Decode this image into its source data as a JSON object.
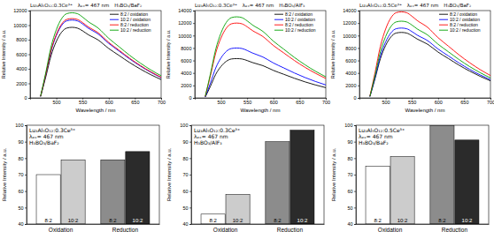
{
  "chart_data": [
    {
      "type": "line",
      "title": "Lu₃Al₅O₁₂:0.3Ce³⁺",
      "annotations": [
        "λₑₓ= 467 nm",
        "H₃BO₃/BaF₂"
      ],
      "xlabel": "Wavelength / nm",
      "ylabel": "Relative Intensity / a.u.",
      "x": [
        470,
        480,
        490,
        500,
        510,
        520,
        530,
        540,
        550,
        560,
        580,
        600,
        620,
        640,
        660,
        680,
        700
      ],
      "xlim": [
        450,
        700
      ],
      "xticks": [
        500,
        550,
        600,
        650,
        700
      ],
      "ylim": [
        0,
        12000
      ],
      "yticks": [
        0,
        2000,
        4000,
        6000,
        8000,
        10000,
        12000
      ],
      "legend": "upper right",
      "series": [
        {
          "name": "8:2 / oxidation",
          "color": "#000000",
          "values": [
            190,
            2910,
            5820,
            7760,
            9020,
            9600,
            9700,
            9600,
            9220,
            8730,
            7950,
            6790,
            5820,
            4850,
            3980,
            3200,
            2520
          ]
        },
        {
          "name": "10:2 / oxidation",
          "color": "#0000ff",
          "values": [
            210,
            3210,
            6420,
            8560,
            9950,
            10590,
            10700,
            10590,
            10170,
            9630,
            8770,
            7490,
            6420,
            5350,
            4390,
            3530,
            2780
          ]
        },
        {
          "name": "8:2 / reduction",
          "color": "#ff0000",
          "values": [
            220,
            3270,
            6540,
            8720,
            10140,
            10790,
            10900,
            10790,
            10360,
            9810,
            8940,
            7630,
            6540,
            5450,
            4470,
            3600,
            2830
          ]
        },
        {
          "name": "10:2 / reduction",
          "color": "#00a000",
          "values": [
            230,
            3510,
            7020,
            9360,
            10880,
            11580,
            11700,
            11580,
            11120,
            10530,
            9590,
            8190,
            7020,
            5850,
            4800,
            3860,
            3040
          ]
        }
      ]
    },
    {
      "type": "line",
      "title": "Lu₃Al₅O₁₂:0.3Ce³⁺",
      "annotations": [
        "λₑₓ= 467 nm",
        "H₃BO₃/AlF₃"
      ],
      "xlabel": "Wavelength / nm",
      "ylabel": "Relative Intensity / a.u.",
      "x": [
        470,
        480,
        490,
        500,
        510,
        520,
        530,
        540,
        550,
        560,
        580,
        600,
        620,
        640,
        660,
        680,
        700
      ],
      "xlim": [
        450,
        700
      ],
      "xticks": [
        500,
        550,
        600,
        650,
        700
      ],
      "ylim": [
        0,
        14000
      ],
      "yticks": [
        0,
        2000,
        4000,
        6000,
        8000,
        10000,
        12000,
        14000
      ],
      "legend": "upper right",
      "series": [
        {
          "name": "8:2 / oxidation",
          "color": "#000000",
          "values": [
            130,
            1890,
            3780,
            5040,
            5860,
            6240,
            6300,
            6240,
            5990,
            5670,
            5170,
            4410,
            3780,
            3150,
            2580,
            2080,
            1640
          ]
        },
        {
          "name": "10:2 / oxidation",
          "color": "#0000ff",
          "values": [
            160,
            2400,
            4800,
            6400,
            7440,
            7920,
            8000,
            7920,
            7600,
            7200,
            6560,
            5600,
            4800,
            4000,
            3280,
            2640,
            2080
          ]
        },
        {
          "name": "8:2 / reduction",
          "color": "#ff0000",
          "values": [
            240,
            3600,
            7200,
            9600,
            11160,
            11880,
            12000,
            11880,
            11400,
            10800,
            9840,
            8400,
            7200,
            6000,
            4920,
            3960,
            3120
          ]
        },
        {
          "name": "10:2 / reduction",
          "color": "#00a000",
          "values": [
            260,
            3900,
            7800,
            10400,
            12090,
            12870,
            13000,
            12870,
            12350,
            11700,
            10660,
            9100,
            7800,
            6500,
            5330,
            4290,
            3380
          ]
        }
      ]
    },
    {
      "type": "line",
      "title": "Lu₃Al₅O₁₂:0.5Ce³⁺",
      "annotations": [
        "λₑₓ= 467 nm",
        "H₃BO₃/BaF₂"
      ],
      "xlabel": "Wavelength / nm",
      "ylabel": "Relative Intensity / a.u.",
      "x": [
        470,
        480,
        490,
        500,
        510,
        520,
        530,
        540,
        550,
        560,
        580,
        600,
        620,
        640,
        660,
        680,
        700
      ],
      "xlim": [
        450,
        700
      ],
      "xticks": [
        500,
        550,
        600,
        650,
        700
      ],
      "ylim": [
        0,
        14000
      ],
      "yticks": [
        0,
        2000,
        4000,
        6000,
        8000,
        10000,
        12000,
        14000
      ],
      "legend": "upper right",
      "series": [
        {
          "name": "8:2 / oxidation",
          "color": "#000000",
          "values": [
            210,
            3150,
            6300,
            8400,
            9770,
            10400,
            10500,
            10400,
            9980,
            9450,
            8610,
            7350,
            6300,
            5250,
            4310,
            3470,
            2730
          ]
        },
        {
          "name": "10:2 / oxidation",
          "color": "#0000ff",
          "values": [
            220,
            3360,
            6720,
            8960,
            10420,
            11090,
            11200,
            11090,
            10640,
            10080,
            9180,
            7840,
            6720,
            5600,
            4590,
            3700,
            2910
          ]
        },
        {
          "name": "8:2 / reduction",
          "color": "#ff0000",
          "values": [
            280,
            4140,
            8280,
            11040,
            12830,
            13660,
            13800,
            13660,
            13110,
            12420,
            11320,
            9660,
            8280,
            6900,
            5660,
            4550,
            3590
          ]
        },
        {
          "name": "10:2 / reduction",
          "color": "#00a000",
          "values": [
            250,
            3690,
            7380,
            9840,
            11440,
            12180,
            12300,
            12180,
            11690,
            11070,
            10090,
            8610,
            7380,
            6150,
            5040,
            4060,
            3200
          ]
        }
      ]
    },
    {
      "type": "bar",
      "title": "Lu₃Al₅O₁₂:0.3Ce³⁺",
      "annotations": [
        "λₑₓ= 467 nm",
        "H₃BO₃/BaF₂"
      ],
      "ylabel": "Relative Intensity / a.u.",
      "categories": [
        "Oxidation",
        "Reduction"
      ],
      "ylim": [
        40,
        100
      ],
      "yticks": [
        40,
        50,
        60,
        70,
        80,
        90,
        100
      ],
      "series": [
        {
          "name": "8:2",
          "colors": [
            "#ffffff",
            "#8c8c8c"
          ],
          "values": [
            70,
            79
          ]
        },
        {
          "name": "10:2",
          "colors": [
            "#cccccc",
            "#2b2b2b"
          ],
          "values": [
            79,
            84
          ]
        }
      ]
    },
    {
      "type": "bar",
      "title": "Lu₃Al₅O₁₂:0.3Ce³⁺",
      "annotations": [
        "λₑₓ= 467 nm",
        "H₃BO₃/AlF₃"
      ],
      "ylabel": "Relative Intensity / a.u.",
      "categories": [
        "Oxidation",
        "Reduction"
      ],
      "ylim": [
        40,
        100
      ],
      "yticks": [
        40,
        50,
        60,
        70,
        80,
        90,
        100
      ],
      "series": [
        {
          "name": "8:2",
          "colors": [
            "#ffffff",
            "#8c8c8c"
          ],
          "values": [
            46,
            90
          ]
        },
        {
          "name": "10:2",
          "colors": [
            "#cccccc",
            "#2b2b2b"
          ],
          "values": [
            58,
            97
          ]
        }
      ]
    },
    {
      "type": "bar",
      "title": "Lu₃Al₅O₁₂:0.5Ce³⁺",
      "annotations": [
        "λₑₓ= 467 nm",
        "H₃BO₃/BaF₂"
      ],
      "ylabel": "Relative Intensity / a.u.",
      "categories": [
        "Oxidation",
        "Reduction"
      ],
      "ylim": [
        40,
        100
      ],
      "yticks": [
        40,
        50,
        60,
        70,
        80,
        90,
        100
      ],
      "series": [
        {
          "name": "8:2",
          "colors": [
            "#ffffff",
            "#8c8c8c"
          ],
          "values": [
            75,
            100
          ]
        },
        {
          "name": "10:2",
          "colors": [
            "#cccccc",
            "#2b2b2b"
          ],
          "values": [
            81,
            91
          ]
        }
      ]
    }
  ]
}
